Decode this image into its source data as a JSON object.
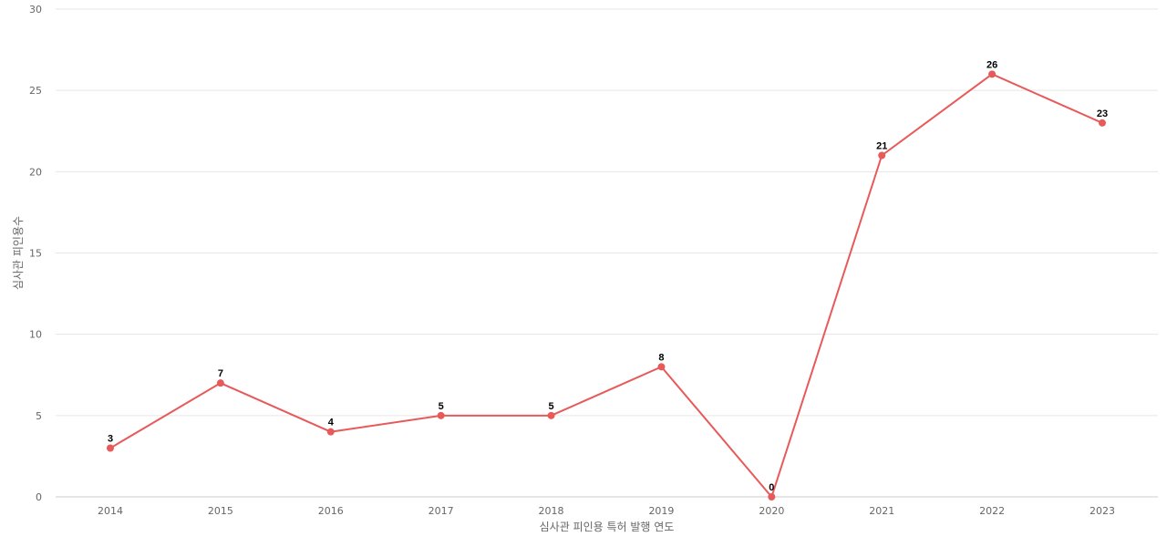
{
  "chart_data": {
    "type": "line",
    "x": [
      "2014",
      "2015",
      "2016",
      "2017",
      "2018",
      "2019",
      "2020",
      "2021",
      "2022",
      "2023"
    ],
    "series": [
      {
        "values": [
          3,
          7,
          4,
          5,
          5,
          8,
          0,
          21,
          26,
          23
        ]
      }
    ],
    "xlabel": "심사관 피인용 특허 발행 연도",
    "ylabel": "심사관 피인용수",
    "ylim": [
      0,
      30
    ],
    "yticks": [
      0,
      5,
      10,
      15,
      20,
      25,
      30
    ],
    "grid": true,
    "legend": "none",
    "data_labels": true,
    "line_color": "#e85a5a"
  }
}
